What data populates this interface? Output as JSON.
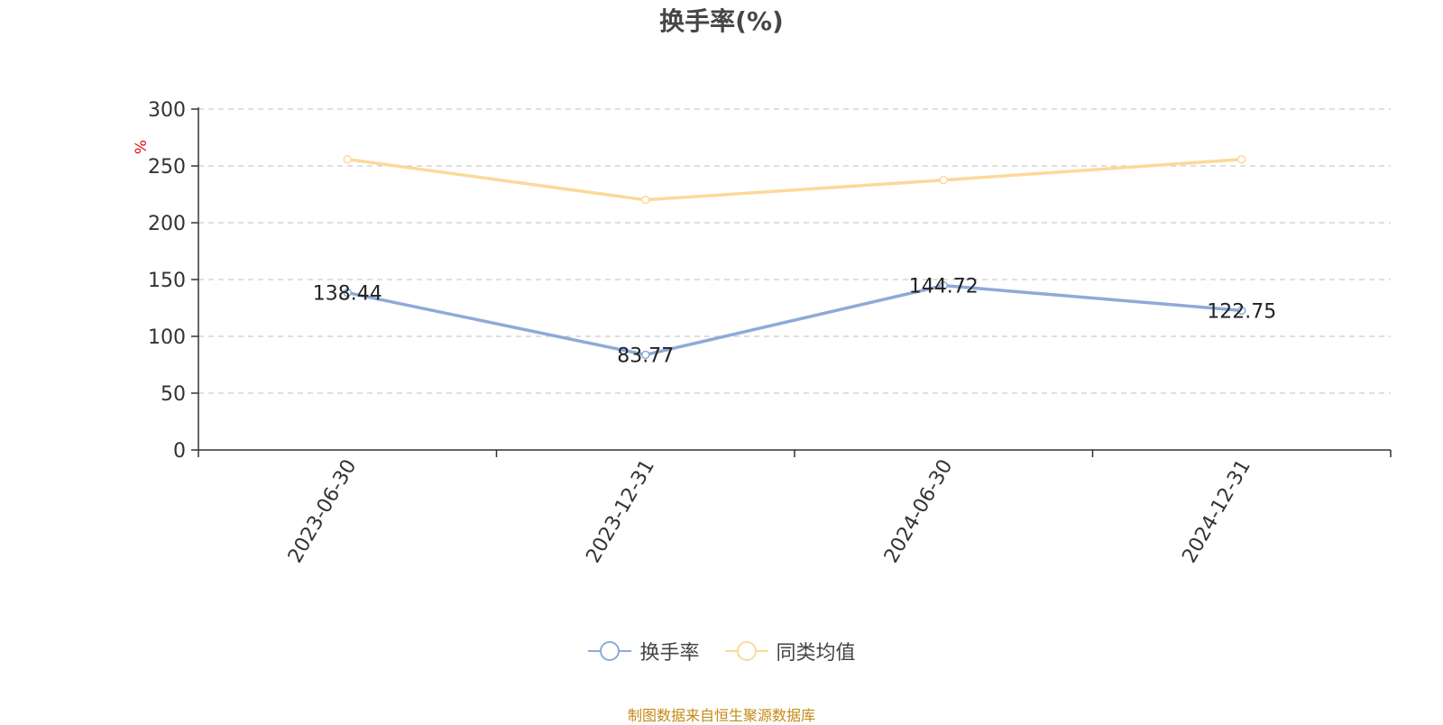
{
  "chart_data": {
    "type": "line",
    "title": "换手率(%)",
    "ylabel": "%",
    "xlabel": "",
    "categories": [
      "2023-06-30",
      "2023-12-31",
      "2024-06-30",
      "2024-12-31"
    ],
    "ylim": [
      0,
      300
    ],
    "yticks": [
      0,
      50,
      100,
      150,
      200,
      250,
      300
    ],
    "grid": true,
    "legend_position": "bottom",
    "series": [
      {
        "name": "换手率",
        "values": [
          138.44,
          83.77,
          144.72,
          122.75
        ],
        "color": "#8eaad8",
        "show_labels": true
      },
      {
        "name": "同类均值",
        "values": [
          255.8,
          220.1,
          237.5,
          255.8
        ],
        "color": "#fbd99a",
        "show_labels": false
      }
    ]
  },
  "footer": {
    "source": "制图数据来自恒生聚源数据库"
  }
}
